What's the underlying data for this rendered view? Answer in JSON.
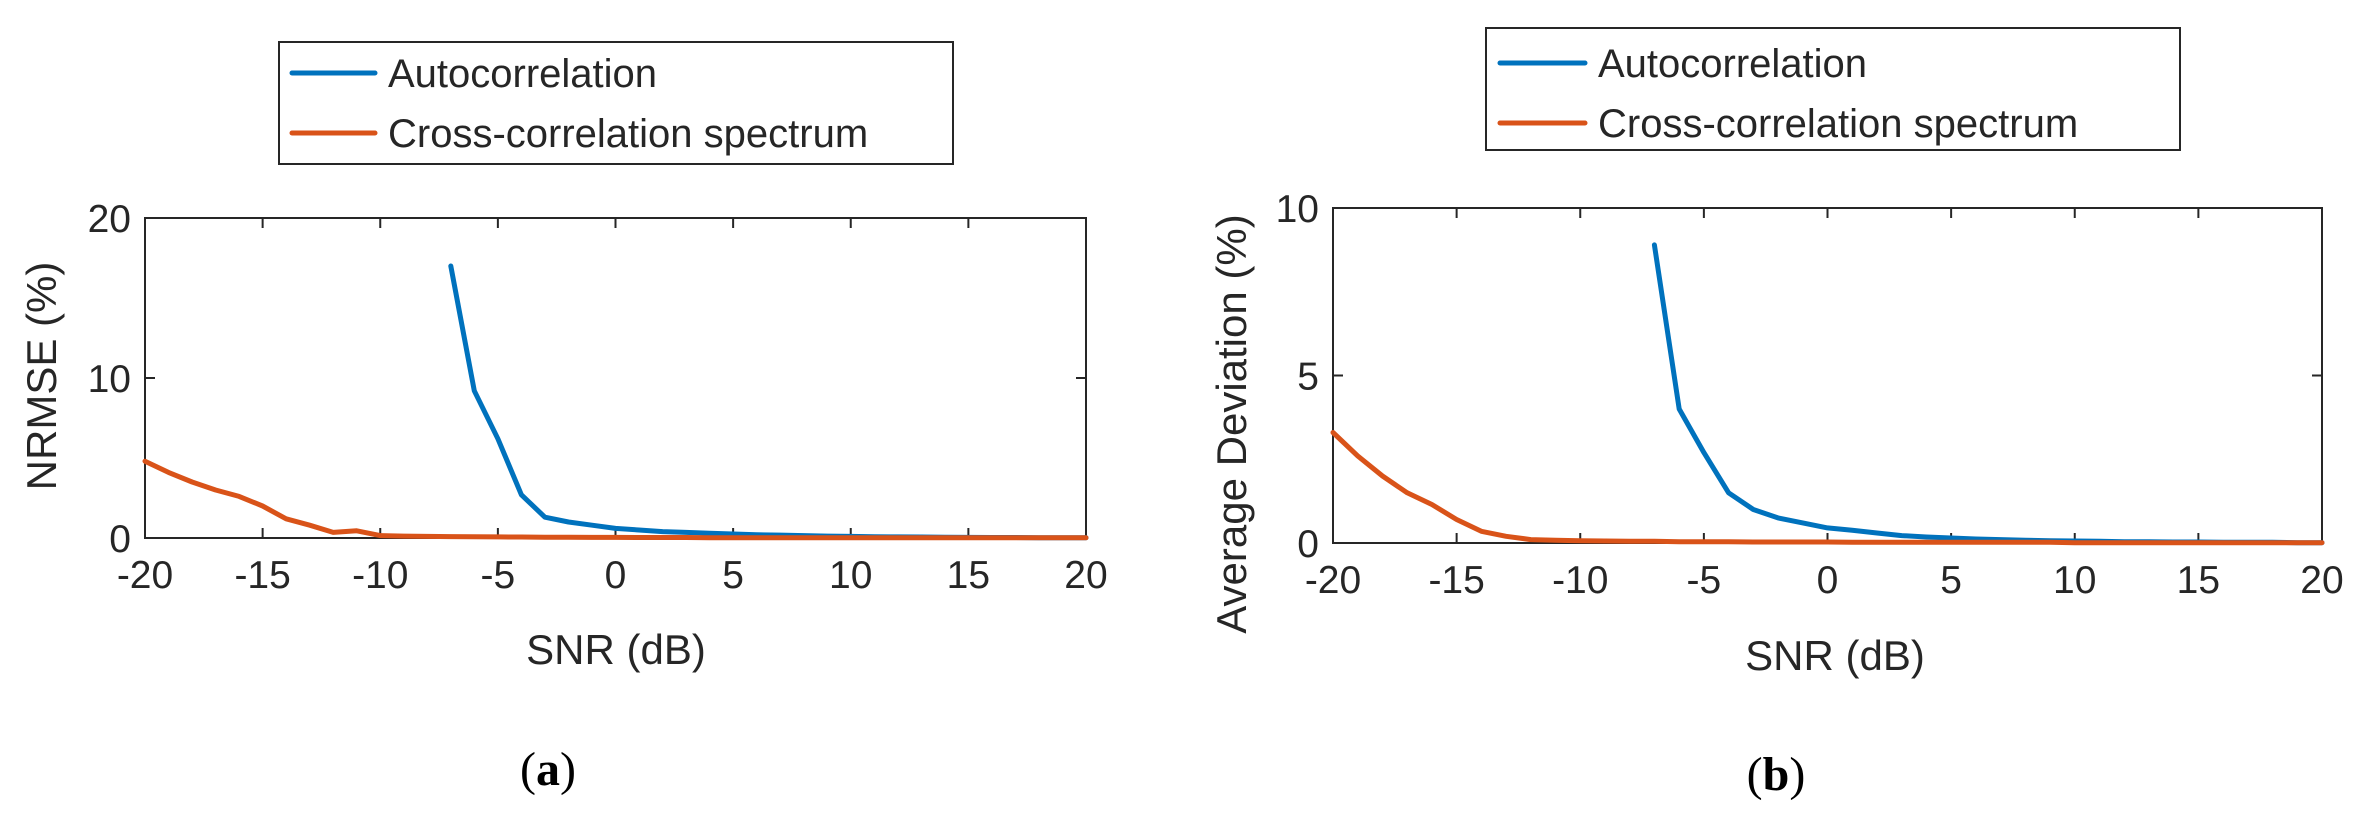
{
  "chart_data": [
    {
      "type": "line",
      "panel_label": "a",
      "xlabel": "SNR (dB)",
      "ylabel": "NRMSE (%)",
      "xlim": [
        -20,
        20
      ],
      "ylim": [
        0,
        20
      ],
      "xticks": [
        -20,
        -15,
        -10,
        -5,
        0,
        5,
        10,
        15,
        20
      ],
      "yticks": [
        0,
        10,
        20
      ],
      "grid": false,
      "legend_position": "top",
      "series": [
        {
          "name": "Autocorrelation",
          "color": "#0072BD",
          "x": [
            -7,
            -6,
            -5,
            -4,
            -3,
            -2,
            -1,
            0,
            1,
            2,
            3,
            4,
            5,
            6,
            7,
            8,
            9,
            10,
            11,
            12,
            13,
            14,
            15,
            16,
            17,
            18,
            19,
            20
          ],
          "y": [
            17,
            9.2,
            6.2,
            2.7,
            1.3,
            1.0,
            0.8,
            0.6,
            0.5,
            0.4,
            0.35,
            0.3,
            0.25,
            0.2,
            0.18,
            0.15,
            0.12,
            0.1,
            0.08,
            0.07,
            0.06,
            0.05,
            0.04,
            0.03,
            0.03,
            0.02,
            0.02,
            0.02
          ]
        },
        {
          "name": "Cross-correlation spectrum",
          "color": "#D95319",
          "x": [
            -20,
            -19,
            -18,
            -17,
            -16,
            -15,
            -14,
            -13,
            -12,
            -11,
            -10,
            -9,
            -8,
            -7,
            -6,
            -5,
            -4,
            -3,
            -2,
            -1,
            0,
            1,
            2,
            3,
            4,
            5,
            6,
            7,
            8,
            9,
            10,
            11,
            12,
            13,
            14,
            15,
            16,
            17,
            18,
            19,
            20
          ],
          "y": [
            4.8,
            4.1,
            3.5,
            3.0,
            2.6,
            2.0,
            1.2,
            0.8,
            0.35,
            0.45,
            0.15,
            0.12,
            0.1,
            0.09,
            0.08,
            0.07,
            0.06,
            0.05,
            0.05,
            0.04,
            0.04,
            0.03,
            0.03,
            0.03,
            0.02,
            0.02,
            0.02,
            0.02,
            0.02,
            0.02,
            0.01,
            0.01,
            0.01,
            0.01,
            0.01,
            0.01,
            0.01,
            0.01,
            0.01,
            0.01,
            0.01
          ]
        }
      ]
    },
    {
      "type": "line",
      "panel_label": "b",
      "xlabel": "SNR (dB)",
      "ylabel": "Average Deviation (%)",
      "xlim": [
        -20,
        20
      ],
      "ylim": [
        0,
        10
      ],
      "xticks": [
        -20,
        -15,
        -10,
        -5,
        0,
        5,
        10,
        15,
        20
      ],
      "yticks": [
        0,
        5,
        10
      ],
      "grid": false,
      "legend_position": "top",
      "series": [
        {
          "name": "Autocorrelation",
          "color": "#0072BD",
          "x": [
            -7,
            -6,
            -5,
            -4,
            -3,
            -2,
            -1,
            0,
            1,
            2,
            3,
            4,
            5,
            6,
            7,
            8,
            9,
            10,
            11,
            12,
            13,
            14,
            15,
            16,
            17,
            18,
            19,
            20
          ],
          "y": [
            8.9,
            4.0,
            2.7,
            1.5,
            1.0,
            0.75,
            0.6,
            0.45,
            0.38,
            0.3,
            0.22,
            0.18,
            0.15,
            0.12,
            0.1,
            0.08,
            0.07,
            0.06,
            0.05,
            0.04,
            0.04,
            0.03,
            0.03,
            0.02,
            0.02,
            0.02,
            0.01,
            0.01
          ]
        },
        {
          "name": "Cross-correlation spectrum",
          "color": "#D95319",
          "x": [
            -20,
            -19,
            -18,
            -17,
            -16,
            -15,
            -14,
            -13,
            -12,
            -11,
            -10,
            -9,
            -8,
            -7,
            -6,
            -5,
            -4,
            -3,
            -2,
            -1,
            0,
            1,
            2,
            3,
            4,
            5,
            6,
            7,
            8,
            9,
            10,
            11,
            12,
            13,
            14,
            15,
            16,
            17,
            18,
            19,
            20
          ],
          "y": [
            3.3,
            2.6,
            2.0,
            1.5,
            1.15,
            0.7,
            0.35,
            0.2,
            0.1,
            0.08,
            0.07,
            0.06,
            0.05,
            0.05,
            0.04,
            0.04,
            0.04,
            0.03,
            0.03,
            0.03,
            0.03,
            0.02,
            0.02,
            0.02,
            0.02,
            0.02,
            0.02,
            0.02,
            0.02,
            0.02,
            0.01,
            0.01,
            0.01,
            0.01,
            0.01,
            0.01,
            0.01,
            0.01,
            0.01,
            0.01,
            0.01
          ]
        }
      ]
    }
  ],
  "captions": {
    "a": {
      "open": "(",
      "letter": "a",
      "close": ")"
    },
    "b": {
      "open": "(",
      "letter": "b",
      "close": ")"
    }
  }
}
